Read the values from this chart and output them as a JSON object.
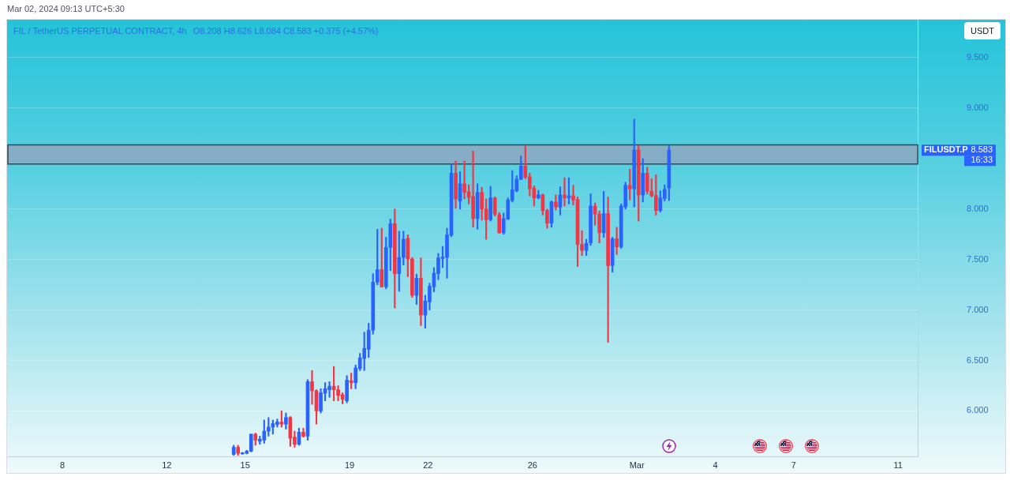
{
  "chart_data": {
    "type": "candlestick",
    "title": "FIL / TetherUS PERPETUAL CONTRACT, 4h",
    "subtitle": "O8.208 H8.626 L8.084 C8.583 +0.375 (+4.57%)",
    "ylabel": "USDT",
    "annotations": [
      "Mar 02, 2024 09:13 UTC+5:30",
      "FILUSDT.P",
      "8.583",
      "16:33"
    ],
    "x": [
      "2024-02-14T13:30",
      "2024-02-14T17:30",
      "2024-02-14T21:30",
      "2024-02-15T01:30",
      "2024-02-15T05:30",
      "2024-02-15T09:30",
      "2024-02-15T13:30",
      "2024-02-15T17:30",
      "2024-02-15T21:30",
      "2024-02-16T01:30",
      "2024-02-16T05:30",
      "2024-02-16T09:30",
      "2024-02-16T13:30",
      "2024-02-16T17:30",
      "2024-02-16T21:30",
      "2024-02-17T01:30",
      "2024-02-17T05:30",
      "2024-02-17T09:30",
      "2024-02-17T13:30",
      "2024-02-17T17:30",
      "2024-02-17T21:30",
      "2024-02-18T01:30",
      "2024-02-18T05:30",
      "2024-02-18T09:30",
      "2024-02-18T13:30",
      "2024-02-18T17:30",
      "2024-02-18T21:30",
      "2024-02-19T01:30",
      "2024-02-19T05:30",
      "2024-02-19T09:30",
      "2024-02-19T13:30",
      "2024-02-19T17:30",
      "2024-02-19T21:30",
      "2024-02-20T01:30",
      "2024-02-20T05:30",
      "2024-02-20T09:30",
      "2024-02-20T13:30",
      "2024-02-20T17:30",
      "2024-02-20T21:30",
      "2024-02-21T01:30",
      "2024-02-21T05:30",
      "2024-02-21T09:30",
      "2024-02-21T13:30",
      "2024-02-21T17:30",
      "2024-02-21T21:30",
      "2024-02-22T01:30",
      "2024-02-22T05:30",
      "2024-02-22T09:30",
      "2024-02-22T13:30",
      "2024-02-22T17:30",
      "2024-02-22T21:30",
      "2024-02-23T01:30",
      "2024-02-23T05:30",
      "2024-02-23T09:30",
      "2024-02-23T13:30",
      "2024-02-23T17:30",
      "2024-02-23T21:30",
      "2024-02-24T01:30",
      "2024-02-24T05:30",
      "2024-02-24T09:30",
      "2024-02-24T13:30",
      "2024-02-24T17:30",
      "2024-02-24T21:30",
      "2024-02-25T01:30",
      "2024-02-25T05:30",
      "2024-02-25T09:30",
      "2024-02-25T13:30",
      "2024-02-25T17:30",
      "2024-02-25T21:30",
      "2024-02-26T01:30",
      "2024-02-26T05:30",
      "2024-02-26T09:30",
      "2024-02-26T13:30",
      "2024-02-26T17:30",
      "2024-02-26T21:30",
      "2024-02-27T01:30",
      "2024-02-27T05:30",
      "2024-02-27T09:30",
      "2024-02-27T13:30",
      "2024-02-27T17:30",
      "2024-02-27T21:30",
      "2024-02-28T01:30",
      "2024-02-28T05:30",
      "2024-02-28T09:30",
      "2024-02-28T13:30",
      "2024-02-28T17:30",
      "2024-02-28T21:30",
      "2024-02-29T01:30",
      "2024-02-29T05:30",
      "2024-02-29T09:30",
      "2024-02-29T13:30",
      "2024-02-29T17:30",
      "2024-02-29T21:30",
      "2024-03-01T01:30",
      "2024-03-01T05:30",
      "2024-03-01T09:30",
      "2024-03-01T13:30",
      "2024-03-01T17:30",
      "2024-03-01T21:30",
      "2024-03-02T01:30",
      "2024-03-02T05:30"
    ],
    "ohlc": [
      [
        5.57,
        5.66,
        5.56,
        5.64
      ],
      [
        5.64,
        5.66,
        5.56,
        5.58
      ],
      [
        5.575,
        5.59,
        5.57,
        5.585
      ],
      [
        5.58,
        5.61,
        5.575,
        5.6
      ],
      [
        5.6,
        5.77,
        5.595,
        5.77
      ],
      [
        5.77,
        5.78,
        5.66,
        5.71
      ],
      [
        5.7,
        5.75,
        5.67,
        5.72
      ],
      [
        5.71,
        5.91,
        5.68,
        5.8
      ],
      [
        5.8,
        5.935,
        5.75,
        5.84
      ],
      [
        5.84,
        5.91,
        5.77,
        5.875
      ],
      [
        5.865,
        5.92,
        5.84,
        5.89
      ],
      [
        5.89,
        6.0,
        5.84,
        5.87
      ],
      [
        5.87,
        5.98,
        5.82,
        5.935
      ],
      [
        5.935,
        5.945,
        5.65,
        5.73
      ],
      [
        5.74,
        5.8,
        5.64,
        5.67
      ],
      [
        5.67,
        5.83,
        5.66,
        5.79
      ],
      [
        5.79,
        5.83,
        5.74,
        5.75
      ],
      [
        5.75,
        6.31,
        5.71,
        6.29
      ],
      [
        6.29,
        6.4,
        6.065,
        6.2
      ],
      [
        6.2,
        6.21,
        5.87,
        6.0
      ],
      [
        6.0,
        6.22,
        5.98,
        6.18
      ],
      [
        6.175,
        6.28,
        6.1,
        6.22
      ],
      [
        6.21,
        6.29,
        6.135,
        6.245
      ],
      [
        6.245,
        6.44,
        6.1,
        6.21
      ],
      [
        6.21,
        6.25,
        6.1,
        6.155
      ],
      [
        6.16,
        6.18,
        6.07,
        6.115
      ],
      [
        6.1,
        6.35,
        6.08,
        6.305
      ],
      [
        6.3,
        6.375,
        6.22,
        6.28
      ],
      [
        6.28,
        6.455,
        6.22,
        6.425
      ],
      [
        6.42,
        6.57,
        6.4,
        6.525
      ],
      [
        6.52,
        6.78,
        6.4,
        6.62
      ],
      [
        6.61,
        6.87,
        6.53,
        6.8
      ],
      [
        6.8,
        7.36,
        6.76,
        7.275
      ],
      [
        7.275,
        7.8,
        7.25,
        7.4
      ],
      [
        7.4,
        7.81,
        7.225,
        7.23
      ],
      [
        7.23,
        7.72,
        7.21,
        7.62
      ],
      [
        7.62,
        7.9,
        7.39,
        7.855
      ],
      [
        7.855,
        8.0,
        7.02,
        7.36
      ],
      [
        7.36,
        7.78,
        7.185,
        7.52
      ],
      [
        7.52,
        7.78,
        7.445,
        7.7
      ],
      [
        7.71,
        7.745,
        7.33,
        7.505
      ],
      [
        7.505,
        7.52,
        7.125,
        7.145
      ],
      [
        7.145,
        7.355,
        7.055,
        7.315
      ],
      [
        7.315,
        7.515,
        6.845,
        6.95
      ],
      [
        6.95,
        7.145,
        6.82,
        7.09
      ],
      [
        7.08,
        7.265,
        7.0,
        7.235
      ],
      [
        7.23,
        7.42,
        7.18,
        7.365
      ],
      [
        7.36,
        7.56,
        7.3,
        7.515
      ],
      [
        7.51,
        7.63,
        7.42,
        7.525
      ],
      [
        7.52,
        7.81,
        7.315,
        7.745
      ],
      [
        7.74,
        8.45,
        7.725,
        8.355
      ],
      [
        8.355,
        8.475,
        8.005,
        8.1
      ],
      [
        8.08,
        8.37,
        8.0,
        8.25
      ],
      [
        8.25,
        8.475,
        8.1,
        8.165
      ],
      [
        8.17,
        8.24,
        8.05,
        8.115
      ],
      [
        8.125,
        8.575,
        7.82,
        7.905
      ],
      [
        7.905,
        8.25,
        7.8,
        8.165
      ],
      [
        8.165,
        8.215,
        7.89,
        8.0
      ],
      [
        8.0,
        8.1,
        7.7,
        7.895
      ],
      [
        7.895,
        8.225,
        7.88,
        8.11
      ],
      [
        8.11,
        8.12,
        7.93,
        7.95
      ],
      [
        7.945,
        7.965,
        7.76,
        7.765
      ],
      [
        7.765,
        7.96,
        7.75,
        7.905
      ],
      [
        7.9,
        8.11,
        7.895,
        8.09
      ],
      [
        8.085,
        8.38,
        8.07,
        8.19
      ],
      [
        8.18,
        8.33,
        8.17,
        8.295
      ],
      [
        8.295,
        8.525,
        8.29,
        8.425
      ],
      [
        8.425,
        8.625,
        8.3,
        8.315
      ],
      [
        8.32,
        8.355,
        8.13,
        8.2
      ],
      [
        8.205,
        8.23,
        8.03,
        8.11
      ],
      [
        8.11,
        8.185,
        8.1,
        8.14
      ],
      [
        8.14,
        8.15,
        7.94,
        7.985
      ],
      [
        7.985,
        8.0,
        7.81,
        7.86
      ],
      [
        7.86,
        8.08,
        7.82,
        8.07
      ],
      [
        8.07,
        8.14,
        7.99,
        8.02
      ],
      [
        8.02,
        8.22,
        7.94,
        8.14
      ],
      [
        8.14,
        8.31,
        8.03,
        8.11
      ],
      [
        8.11,
        8.31,
        8.05,
        8.13
      ],
      [
        8.13,
        8.235,
        8.04,
        8.09
      ],
      [
        8.095,
        8.12,
        7.43,
        7.65
      ],
      [
        7.65,
        7.785,
        7.54,
        7.59
      ],
      [
        7.59,
        7.7,
        7.54,
        7.66
      ],
      [
        7.665,
        8.15,
        7.64,
        8.03
      ],
      [
        8.03,
        8.06,
        7.84,
        7.95
      ],
      [
        7.95,
        7.98,
        7.665,
        7.765
      ],
      [
        7.765,
        8.175,
        7.72,
        7.955
      ],
      [
        7.955,
        8.12,
        6.68,
        7.44
      ],
      [
        7.44,
        7.72,
        7.375,
        7.705
      ],
      [
        7.705,
        7.82,
        7.55,
        7.625
      ],
      [
        7.625,
        8.05,
        7.61,
        8.03
      ],
      [
        8.02,
        8.265,
        8.0,
        8.235
      ],
      [
        8.235,
        8.395,
        8.09,
        8.2
      ],
      [
        8.2,
        8.89,
        8.02,
        8.585
      ],
      [
        8.585,
        8.63,
        7.88,
        8.14
      ],
      [
        8.14,
        8.5,
        8.07,
        8.355
      ],
      [
        8.355,
        8.415,
        8.15,
        8.175
      ],
      [
        8.175,
        8.3,
        8.12,
        8.13
      ],
      [
        8.135,
        8.34,
        7.94,
        7.985
      ],
      [
        7.985,
        8.18,
        7.97,
        8.11
      ],
      [
        8.105,
        8.24,
        8.08,
        8.195
      ],
      [
        8.208,
        8.626,
        8.084,
        8.583
      ]
    ],
    "colors": [
      "#2962ff",
      "#f23645",
      "#2962ff",
      "#2962ff",
      "#2962ff",
      "#f23645",
      "#2962ff",
      "#2962ff",
      "#2962ff",
      "#2962ff",
      "#2962ff",
      "#f23645",
      "#2962ff",
      "#f23645",
      "#f23645",
      "#2962ff",
      "#f23645",
      "#2962ff",
      "#f23645",
      "#f23645",
      "#2962ff",
      "#2962ff",
      "#2962ff",
      "#f23645",
      "#f23645",
      "#f23645",
      "#2962ff",
      "#f23645",
      "#2962ff",
      "#2962ff",
      "#2962ff",
      "#2962ff",
      "#2962ff",
      "#2962ff",
      "#f23645",
      "#2962ff",
      "#2962ff",
      "#f23645",
      "#2962ff",
      "#2962ff",
      "#f23645",
      "#f23645",
      "#2962ff",
      "#f23645",
      "#2962ff",
      "#2962ff",
      "#2962ff",
      "#2962ff",
      "#2962ff",
      "#2962ff",
      "#2962ff",
      "#f23645",
      "#2962ff",
      "#f23645",
      "#f23645",
      "#f23645",
      "#2962ff",
      "#f23645",
      "#f23645",
      "#2962ff",
      "#f23645",
      "#f23645",
      "#2962ff",
      "#2962ff",
      "#2962ff",
      "#2962ff",
      "#2962ff",
      "#f23645",
      "#f23645",
      "#f23645",
      "#2962ff",
      "#f23645",
      "#f23645",
      "#2962ff",
      "#f23645",
      "#2962ff",
      "#f23645",
      "#2962ff",
      "#f23645",
      "#f23645",
      "#f23645",
      "#2962ff",
      "#2962ff",
      "#f23645",
      "#f23645",
      "#2962ff",
      "#f23645",
      "#2962ff",
      "#f23645",
      "#2962ff",
      "#2962ff",
      "#f23645",
      "#2962ff",
      "#f23645",
      "#2962ff",
      "#f23645",
      "#f23645",
      "#f23645",
      "#2962ff",
      "#2962ff",
      "#2962ff"
    ],
    "xlim": [
      "2024-02-05T22:00",
      "2024-03-11T18:00"
    ],
    "xticks": [
      {
        "value": "2024-02-08",
        "label": "8"
      },
      {
        "value": "2024-02-12",
        "label": "12"
      },
      {
        "value": "2024-02-15",
        "label": "15"
      },
      {
        "value": "2024-02-19",
        "label": "19"
      },
      {
        "value": "2024-02-22",
        "label": "22"
      },
      {
        "value": "2024-02-26",
        "label": "26"
      },
      {
        "value": "2024-03-01",
        "label": "Mar"
      },
      {
        "value": "2024-03-04",
        "label": "4"
      },
      {
        "value": "2024-03-07",
        "label": "7"
      },
      {
        "value": "2024-03-11",
        "label": "11"
      }
    ],
    "ylim": [
      5.55,
      9.875
    ],
    "yticks": [
      {
        "value": 6,
        "label": "6.000"
      },
      {
        "value": 6.5,
        "label": "6.500"
      },
      {
        "value": 7,
        "label": "7.000"
      },
      {
        "value": 7.5,
        "label": "7.500"
      },
      {
        "value": 8,
        "label": "8.000"
      },
      {
        "value": 8.5,
        "label": null
      },
      {
        "value": 9,
        "label": "9.000"
      },
      {
        "value": 9.5,
        "label": "9.500"
      }
    ],
    "grid": "y",
    "bands": [
      {
        "axis": "y",
        "from": 8.445,
        "to": 8.635,
        "color": "#8ea7bf"
      }
    ]
  }
}
